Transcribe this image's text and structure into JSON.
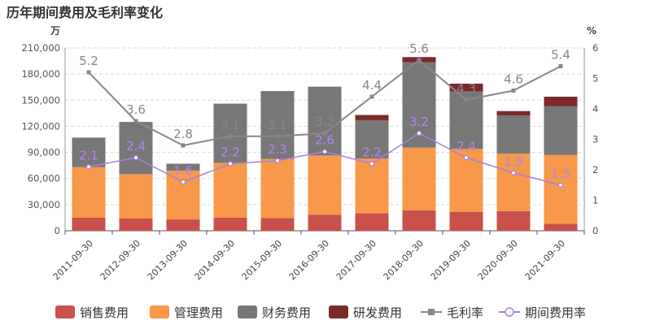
{
  "chart_data": {
    "type": "bar",
    "title": "历年期间费用及毛利率变化",
    "y_left_unit": "万",
    "y_right_unit": "%",
    "categories": [
      "2011-09-30",
      "2012-09-30",
      "2013-09-30",
      "2014-09-30",
      "2015-09-30",
      "2016-09-30",
      "2017-09-30",
      "2018-09-30",
      "2019-09-30",
      "2020-09-30",
      "2021-09-30"
    ],
    "y_left_ticks": [
      "0",
      "30,000",
      "60,000",
      "90,000",
      "120,000",
      "150,000",
      "180,000",
      "210,000"
    ],
    "y_right_ticks": [
      "0",
      "1",
      "2",
      "3",
      "4",
      "5",
      "6"
    ],
    "ylim_left": [
      0,
      210000
    ],
    "ylim_right": [
      0,
      6
    ],
    "stacked": true,
    "grid": "horizontal dashed",
    "legend_position": "bottom",
    "series": [
      {
        "name": "销售费用",
        "kind": "bar",
        "color": "#c9504b",
        "values": [
          15000,
          14000,
          13000,
          15000,
          14500,
          18500,
          20000,
          23500,
          21500,
          22500,
          8000
        ]
      },
      {
        "name": "管理费用",
        "kind": "bar",
        "color": "#f7984a",
        "values": [
          58000,
          51000,
          56000,
          63000,
          68000,
          68000,
          63000,
          72000,
          72500,
          66000,
          79000
        ]
      },
      {
        "name": "财务费用",
        "kind": "bar",
        "color": "#777777",
        "values": [
          34000,
          60000,
          8000,
          68000,
          78000,
          79000,
          44000,
          98000,
          66000,
          44000,
          56000
        ]
      },
      {
        "name": "研发费用",
        "kind": "bar",
        "color": "#7b2a2a",
        "values": [
          0,
          0,
          0,
          0,
          0,
          0,
          6000,
          6000,
          9000,
          5000,
          11000
        ]
      },
      {
        "name": "毛利率",
        "kind": "line",
        "axis": "right",
        "color": "#8e8290",
        "label_color": "#8e8290",
        "values": [
          5.2,
          3.6,
          2.8,
          3.1,
          3.1,
          3.2,
          4.4,
          5.6,
          4.3,
          4.6,
          5.4
        ],
        "labels": [
          "5.2",
          "3.6",
          "2.8",
          "3.1",
          "3.1",
          "3.2",
          "4.4",
          "5.6",
          "4.3",
          "4.6",
          "5.4"
        ]
      },
      {
        "name": "期间费用率",
        "kind": "line",
        "axis": "right",
        "color": "#a97fe0",
        "label_color": "#b385ee",
        "values": [
          2.1,
          2.4,
          1.6,
          2.2,
          2.3,
          2.6,
          2.2,
          3.2,
          2.4,
          1.9,
          1.5
        ],
        "labels": [
          "2.1",
          "2.4",
          "1.6",
          "2.2",
          "2.3",
          "2.6",
          "2.2",
          "3.2",
          "2.4",
          "1.9",
          "1.5"
        ]
      }
    ]
  }
}
